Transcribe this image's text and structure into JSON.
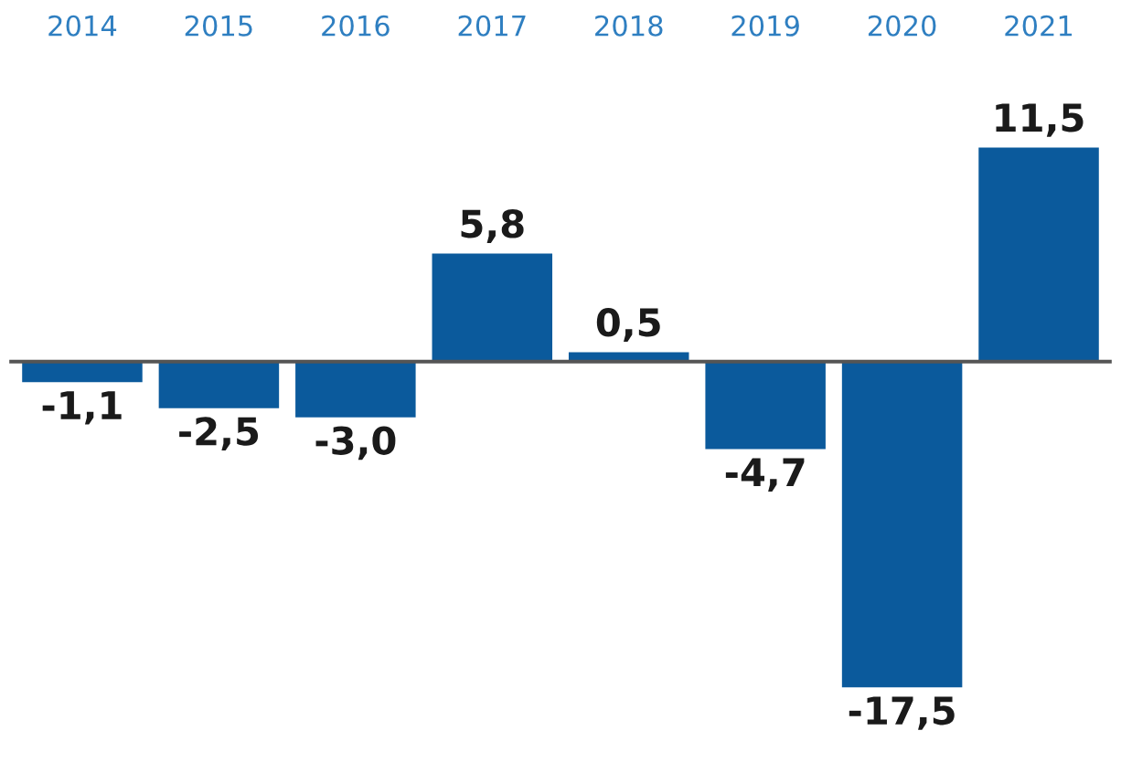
{
  "chart_data": {
    "type": "bar",
    "categories": [
      "2014",
      "2015",
      "2016",
      "2017",
      "2018",
      "2019",
      "2020",
      "2021"
    ],
    "values": [
      -1.1,
      -2.5,
      -3.0,
      5.8,
      0.5,
      -4.7,
      -17.5,
      11.5
    ],
    "value_labels": [
      "-1,1",
      "-2,5",
      "-3,0",
      "5,8",
      "0,5",
      "-4,7",
      "-17,5",
      "11,5"
    ],
    "color": "#0b5a9c",
    "grid": false,
    "legend": false
  }
}
